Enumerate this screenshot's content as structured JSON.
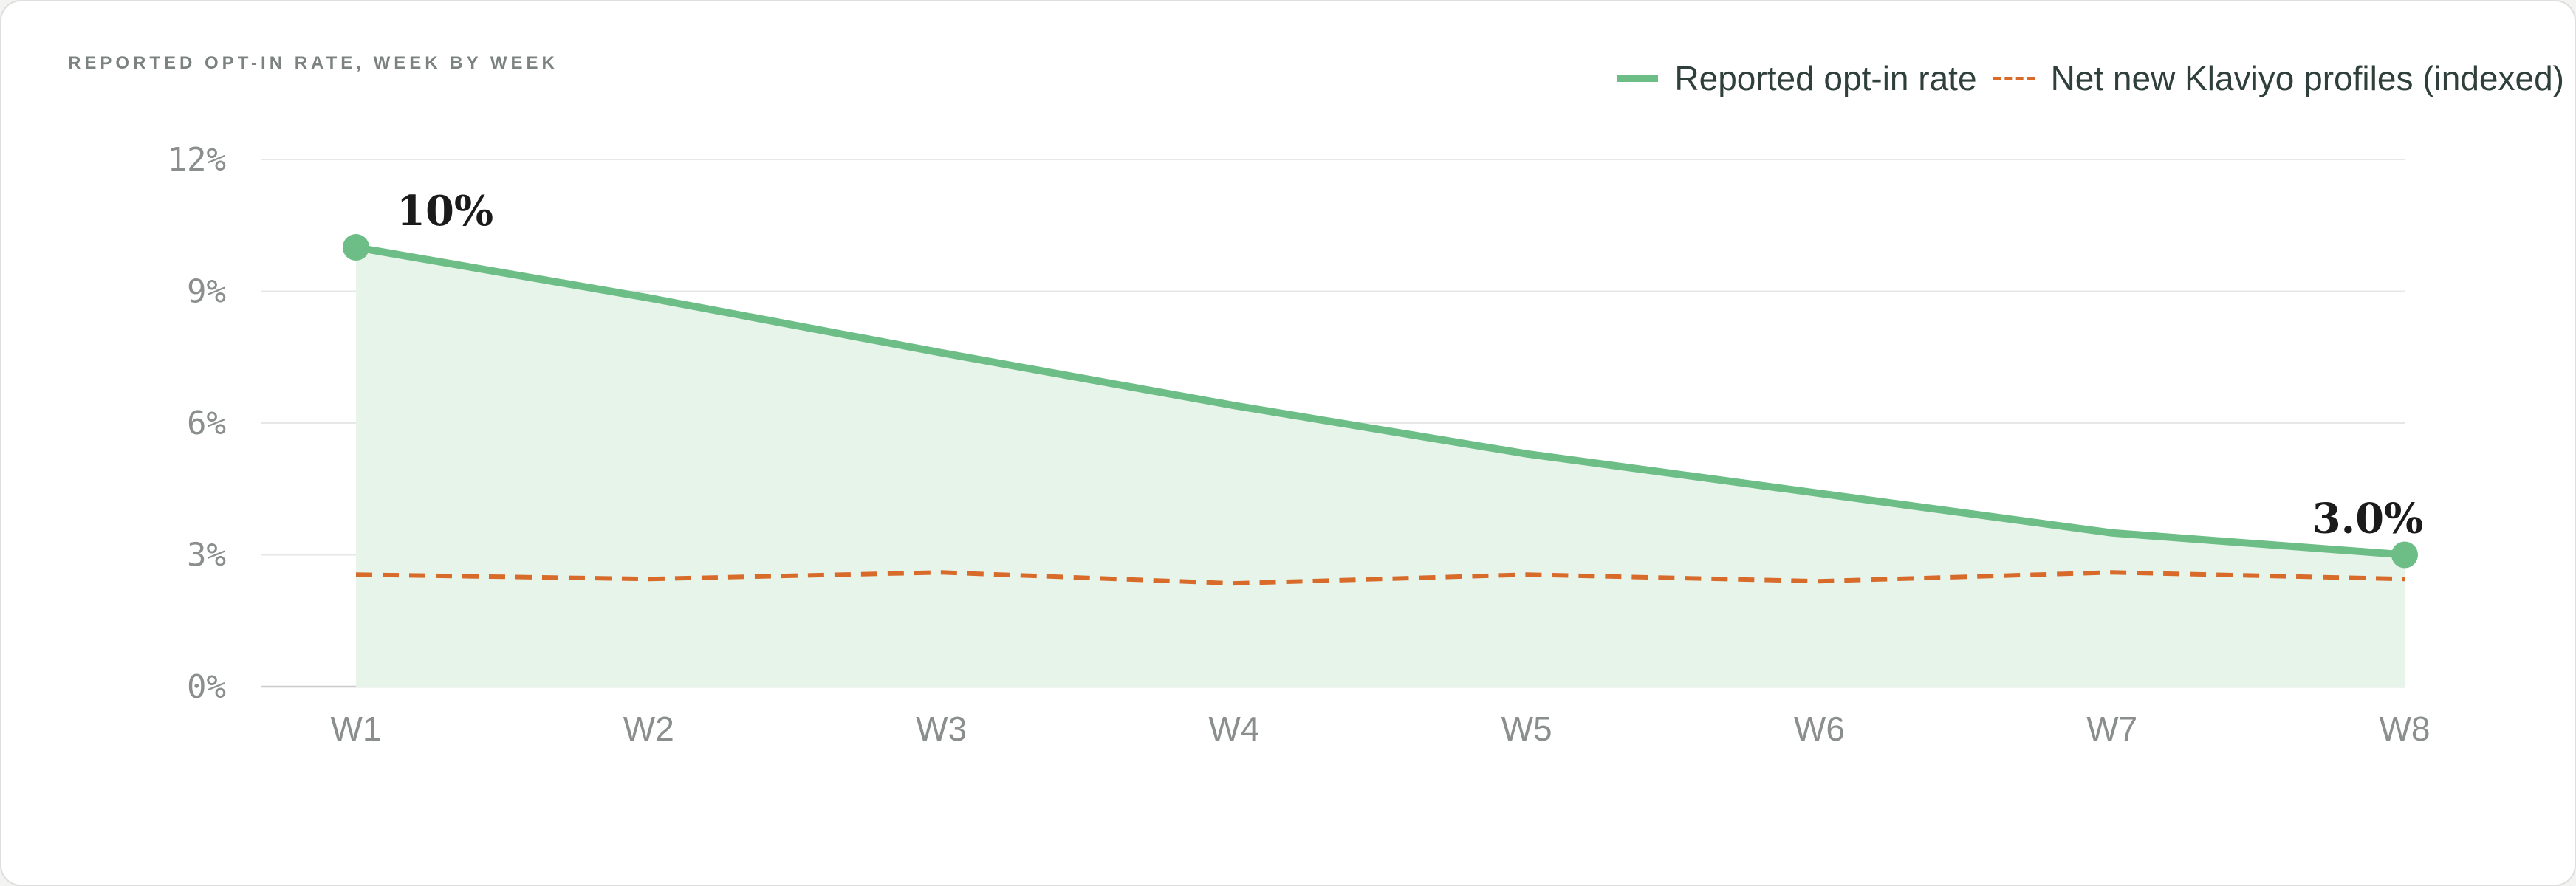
{
  "chart_data": {
    "type": "line",
    "title": "REPORTED OPT-IN RATE, WEEK BY WEEK",
    "xlabel": "",
    "ylabel": "",
    "categories": [
      "W1",
      "W2",
      "W3",
      "W4",
      "W5",
      "W6",
      "W7",
      "W8"
    ],
    "ylim": [
      0,
      12
    ],
    "yticks": [
      0,
      3,
      6,
      9,
      12
    ],
    "ytick_labels": [
      "0%",
      "3%",
      "6%",
      "9%",
      "12%"
    ],
    "grid": true,
    "legend_position": "top-right",
    "series": [
      {
        "name": "Reported opt-in rate",
        "style": "solid-area",
        "color": "#6dbd86",
        "fill_color": "#e6f4ea",
        "values": [
          10.0,
          8.85,
          7.6,
          6.4,
          5.3,
          4.4,
          3.5,
          3.0
        ]
      },
      {
        "name": "Net new Klaviyo profiles (indexed)",
        "style": "dashed",
        "color": "#d86a2a",
        "values": [
          2.55,
          2.45,
          2.6,
          2.35,
          2.55,
          2.4,
          2.6,
          2.45
        ]
      }
    ],
    "annotations": [
      {
        "series": 0,
        "index": 0,
        "text": "10%"
      },
      {
        "series": 0,
        "index": 7,
        "text": "3.0%"
      }
    ]
  }
}
